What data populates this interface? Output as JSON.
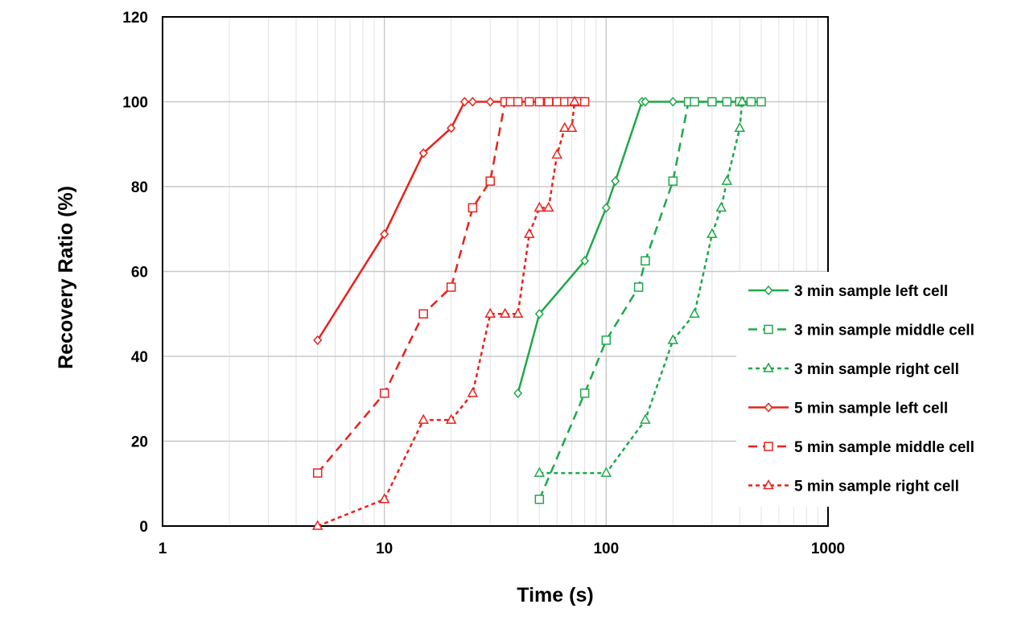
{
  "chart_data": {
    "type": "line",
    "xlabel": "Time (s)",
    "ylabel": "Recovery Ratio (%)",
    "xscale": "log",
    "xlim": [
      1,
      1000
    ],
    "ylim": [
      0,
      120
    ],
    "xticks": [
      1,
      10,
      100,
      1000
    ],
    "xtick_labels": [
      "1",
      "10",
      "100",
      "1000"
    ],
    "yticks": [
      0,
      20,
      40,
      60,
      80,
      100,
      120
    ],
    "ytick_labels": [
      "0",
      "20",
      "40",
      "60",
      "80",
      "100",
      "120"
    ],
    "grid": "major and minor",
    "legend_position": "right",
    "series": [
      {
        "name": "3 min sample left cell",
        "color": "#1ea84a",
        "linestyle": "solid",
        "marker": "diamond",
        "x": [
          40,
          50,
          80,
          100,
          110,
          145,
          150,
          200,
          240,
          300,
          350,
          400,
          450,
          500
        ],
        "y": [
          31.3,
          50,
          62.5,
          75,
          81.3,
          100,
          100,
          100,
          100,
          100,
          100,
          100,
          100,
          100
        ]
      },
      {
        "name": "3 min sample middle cell",
        "color": "#1ea84a",
        "linestyle": "dashed",
        "marker": "square",
        "x": [
          50,
          80,
          100,
          140,
          150,
          200,
          235,
          250,
          300,
          350,
          400,
          450,
          500
        ],
        "y": [
          6.3,
          31.3,
          43.8,
          56.3,
          62.5,
          81.3,
          100,
          100,
          100,
          100,
          100,
          100,
          100
        ]
      },
      {
        "name": "3 min sample right cell",
        "color": "#1ea84a",
        "linestyle": "dotted",
        "marker": "triangle",
        "x": [
          50,
          100,
          150,
          200,
          250,
          300,
          330,
          350,
          400,
          410
        ],
        "y": [
          12.5,
          12.5,
          25,
          43.8,
          50,
          68.8,
          75,
          81.3,
          93.8,
          100
        ]
      },
      {
        "name": "5 min sample left cell",
        "color": "#e8221c",
        "linestyle": "solid",
        "marker": "diamond",
        "x": [
          5,
          10,
          15,
          20,
          23,
          25,
          30,
          35,
          40,
          45,
          50,
          55,
          60,
          65,
          70,
          75,
          80
        ],
        "y": [
          43.8,
          68.8,
          87.9,
          93.8,
          100,
          100,
          100,
          100,
          100,
          100,
          100,
          100,
          100,
          100,
          100,
          100,
          100
        ]
      },
      {
        "name": "5 min sample middle cell",
        "color": "#e8221c",
        "linestyle": "dashed",
        "marker": "square",
        "x": [
          5,
          10,
          15,
          20,
          25,
          30,
          35,
          37,
          40,
          45,
          50,
          55,
          60,
          65,
          70,
          75,
          80
        ],
        "y": [
          12.5,
          31.3,
          50,
          56.3,
          75,
          81.3,
          100,
          100,
          100,
          100,
          100,
          100,
          100,
          100,
          100,
          100,
          100
        ]
      },
      {
        "name": "5 min sample right cell",
        "color": "#e8221c",
        "linestyle": "dotted",
        "marker": "triangle",
        "x": [
          5,
          10,
          15,
          20,
          25,
          30,
          35,
          40,
          45,
          50,
          55,
          60,
          65,
          70,
          72
        ],
        "y": [
          0,
          6.3,
          25,
          25,
          31.3,
          50,
          50,
          50,
          68.8,
          75,
          75,
          87.5,
          93.8,
          93.8,
          100
        ]
      }
    ]
  }
}
